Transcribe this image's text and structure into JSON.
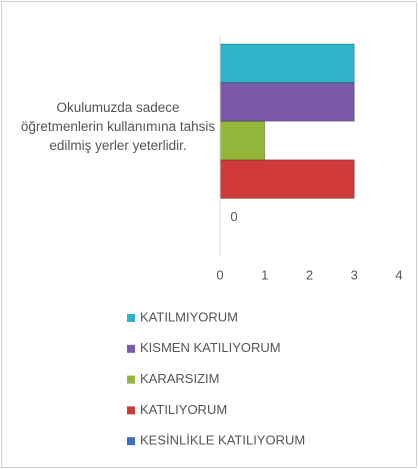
{
  "chart_data": {
    "type": "bar",
    "orientation": "horizontal",
    "categories": [
      "Okulumuzda sadece öğretmenlerin kullanımına tahsis edilmiş yerler yeterlidir."
    ],
    "series": [
      {
        "name": "KESİNLİKLE KATILIYORUM",
        "color": "#3a6fc1",
        "values": [
          0
        ],
        "data_labels": true
      },
      {
        "name": "KATILIYORUM",
        "color": "#d03a3a",
        "values": [
          3
        ]
      },
      {
        "name": "KARARSIZIM",
        "color": "#92b53a",
        "values": [
          1
        ]
      },
      {
        "name": "KISMEN KATILIYORUM",
        "color": "#7a5aa8",
        "values": [
          3
        ]
      },
      {
        "name": "KATILMIYORUM",
        "color": "#2fb3c9",
        "values": [
          3
        ]
      }
    ],
    "xlim": [
      0,
      4
    ],
    "xticks": [
      0,
      1,
      2,
      3,
      4
    ],
    "legend": "bottom"
  }
}
